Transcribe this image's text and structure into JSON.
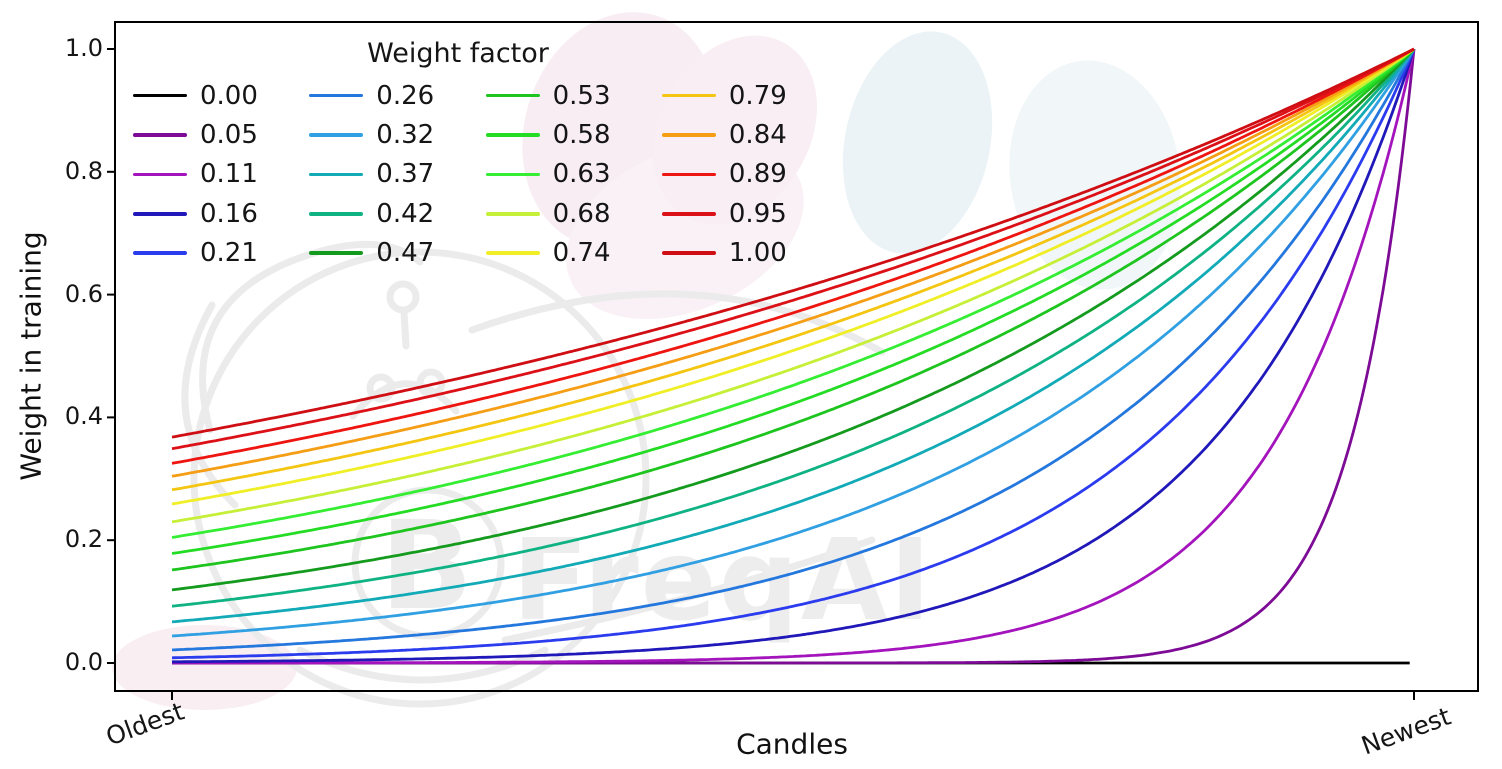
{
  "figure": {
    "watermark_text": "FreqAI",
    "background": "#ffffff",
    "spine_color": "#000000",
    "text_color": "#151515"
  },
  "chart_data": {
    "type": "line",
    "title": "",
    "legend_title": "Weight factor",
    "legend_position": "upper left, 4 columns, no frame",
    "xlabel": "Candles",
    "ylabel": "Weight in training",
    "x_range_labels": [
      "Oldest",
      "Newest"
    ],
    "ylim": [
      0,
      1
    ],
    "yticks": [
      0.0,
      0.2,
      0.4,
      0.6,
      0.8,
      1.0
    ],
    "ytick_labels": [
      "0.0",
      "0.2",
      "0.4",
      "0.6",
      "0.8",
      "1.0"
    ],
    "grid": false,
    "formula": "weight(x) = exp(-(1 - x) / factor) for x in [0,1] (oldest to newest); factor = 0 gives weight 0 (flat black line)",
    "series": [
      {
        "name": "0.00",
        "factor": 0.0,
        "color": "#000000",
        "y_at_oldest": 0.0
      },
      {
        "name": "0.05",
        "factor": 0.05,
        "color": "#7d0b96",
        "y_at_oldest": 0.0
      },
      {
        "name": "0.11",
        "factor": 0.11,
        "color": "#a414bc",
        "y_at_oldest": 0.0001
      },
      {
        "name": "0.16",
        "factor": 0.16,
        "color": "#2018b8",
        "y_at_oldest": 0.0019
      },
      {
        "name": "0.21",
        "factor": 0.21,
        "color": "#2b3bee",
        "y_at_oldest": 0.0086
      },
      {
        "name": "0.26",
        "factor": 0.26,
        "color": "#2377dd",
        "y_at_oldest": 0.0213
      },
      {
        "name": "0.32",
        "factor": 0.32,
        "color": "#31a0e2",
        "y_at_oldest": 0.0439
      },
      {
        "name": "0.37",
        "factor": 0.37,
        "color": "#12aab6",
        "y_at_oldest": 0.0672
      },
      {
        "name": "0.42",
        "factor": 0.42,
        "color": "#0fb283",
        "y_at_oldest": 0.0924
      },
      {
        "name": "0.47",
        "factor": 0.47,
        "color": "#149b1e",
        "y_at_oldest": 0.1192
      },
      {
        "name": "0.53",
        "factor": 0.53,
        "color": "#1ec51e",
        "y_at_oldest": 0.1516
      },
      {
        "name": "0.58",
        "factor": 0.58,
        "color": "#25dc25",
        "y_at_oldest": 0.1782
      },
      {
        "name": "0.63",
        "factor": 0.63,
        "color": "#35ee33",
        "y_at_oldest": 0.2044
      },
      {
        "name": "0.68",
        "factor": 0.68,
        "color": "#c6ef38",
        "y_at_oldest": 0.2298
      },
      {
        "name": "0.74",
        "factor": 0.74,
        "color": "#f0ee26",
        "y_at_oldest": 0.2589
      },
      {
        "name": "0.79",
        "factor": 0.79,
        "color": "#f4c511",
        "y_at_oldest": 0.282
      },
      {
        "name": "0.84",
        "factor": 0.84,
        "color": "#f59d14",
        "y_at_oldest": 0.3042
      },
      {
        "name": "0.89",
        "factor": 0.89,
        "color": "#ee1510",
        "y_at_oldest": 0.3253
      },
      {
        "name": "0.95",
        "factor": 0.95,
        "color": "#dc1118",
        "y_at_oldest": 0.349
      },
      {
        "name": "1.00",
        "factor": 1.0,
        "color": "#cf0e13",
        "y_at_oldest": 0.3679
      }
    ]
  }
}
